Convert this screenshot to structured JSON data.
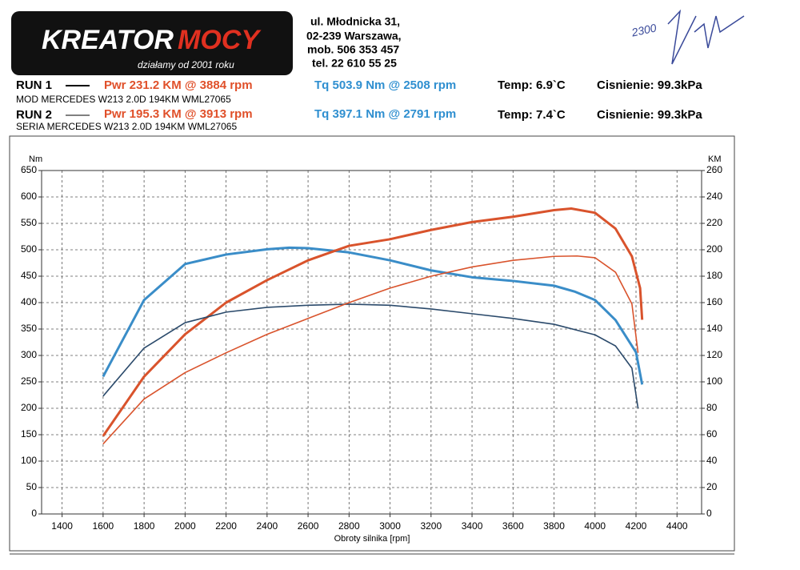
{
  "header": {
    "logo_part1": "KREATOR",
    "logo_part2": "MOCY",
    "slogan": "działamy od 2001 roku",
    "address": [
      "ul. Młodnicka 31,",
      "02-239  Warszawa,",
      "mob.  506 353 457",
      "tel.  22 610 55 25"
    ],
    "handwriting": "2300"
  },
  "runs": [
    {
      "label": "RUN 1",
      "pwr": "Pwr  231.2 KM @ 3884 rpm",
      "tq": "Tq  503.9 Nm @ 2508 rpm",
      "temp": "Temp: 6.9`C",
      "pressure": "Cisnienie: 99.3kPa",
      "car": "MOD MERCEDES W213 2.0D 194KM WML27065"
    },
    {
      "label": "RUN 2",
      "pwr": "Pwr  195.3 KM @ 3913 rpm",
      "tq": "Tq  397.1 Nm @ 2791 rpm",
      "temp": "Temp: 7.4`C",
      "pressure": "Cisnienie: 99.3kPa",
      "car": "SERIA MERCEDES W213 2.0D 194KM WML27065"
    }
  ],
  "chart_data": {
    "type": "line",
    "x_label": "Obroty silnika [rpm]",
    "y_label": "Nm",
    "y2_label": "KM",
    "xlim": [
      1300,
      4520
    ],
    "xticks": [
      1400,
      1600,
      1800,
      2000,
      2200,
      2400,
      2600,
      2800,
      3000,
      3200,
      3400,
      3600,
      3800,
      4000,
      4200,
      4400
    ],
    "ylim": [
      0,
      650
    ],
    "yticks": [
      0,
      50,
      100,
      150,
      200,
      250,
      300,
      350,
      400,
      450,
      500,
      550,
      600,
      650
    ],
    "y2lim": [
      0,
      260
    ],
    "y2ticks": [
      0,
      20,
      40,
      60,
      80,
      100,
      120,
      140,
      160,
      180,
      200,
      220,
      240,
      260
    ],
    "grid": true,
    "series": [
      {
        "color": "#3a8dc8",
        "width": 3,
        "x": [
          1600,
          1800,
          2000,
          2200,
          2400,
          2508,
          2600,
          2800,
          3000,
          3200,
          3400,
          3600,
          3800,
          3900,
          4000,
          4100,
          4200,
          4230
        ],
        "values": [
          260,
          405,
          473,
          491,
          501,
          504,
          503,
          495,
          480,
          461,
          448,
          441,
          432,
          421,
          405,
          367,
          306,
          245
        ]
      },
      {
        "color": "#d9532c",
        "width": 3,
        "axis": "y2",
        "x": [
          1600,
          1800,
          2000,
          2200,
          2400,
          2600,
          2800,
          3000,
          3200,
          3400,
          3600,
          3800,
          3884,
          4000,
          4100,
          4180,
          4220,
          4230
        ],
        "values": [
          59,
          104,
          136,
          160,
          177,
          192,
          203,
          208,
          215,
          221,
          225,
          230,
          231.2,
          228,
          216,
          195,
          171,
          147
        ]
      },
      {
        "color": "#2b4a6b",
        "width": 1.6,
        "x": [
          1600,
          1800,
          2000,
          2200,
          2400,
          2600,
          2800,
          3000,
          3200,
          3400,
          3600,
          3800,
          4000,
          4100,
          4180,
          4210
        ],
        "values": [
          223,
          314,
          362,
          382,
          391,
          395,
          397,
          395,
          388,
          379,
          370,
          359,
          339,
          318,
          276,
          200
        ]
      },
      {
        "color": "#d9532c",
        "width": 1.6,
        "axis": "y2",
        "x": [
          1600,
          1800,
          2000,
          2200,
          2400,
          2600,
          2800,
          3000,
          3200,
          3400,
          3600,
          3800,
          3913,
          4000,
          4100,
          4180,
          4210
        ],
        "values": [
          53,
          87,
          107,
          122,
          136,
          148,
          160,
          171,
          180,
          187,
          192,
          195,
          195.3,
          194,
          183,
          159,
          122
        ]
      }
    ]
  }
}
